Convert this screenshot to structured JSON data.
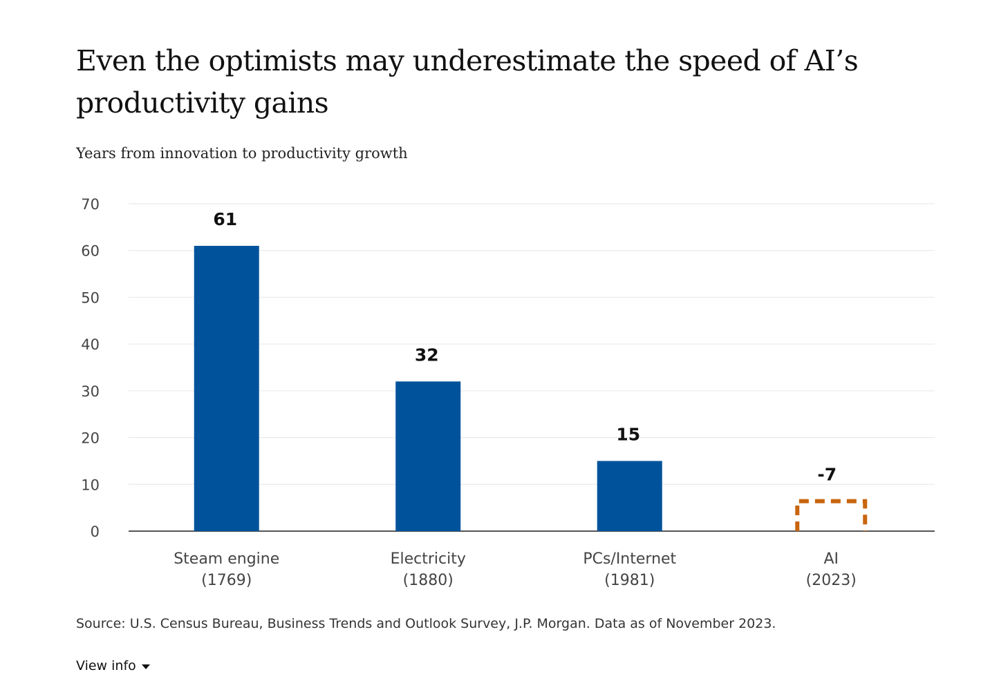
{
  "header": {
    "title": "Even the optimists may underestimate the speed of AI’s productivity gains",
    "subtitle": "Years from innovation to productivity growth"
  },
  "chart_data": {
    "type": "bar",
    "title": "Even the optimists may underestimate the speed of AI’s productivity gains",
    "subtitle": "Years from innovation to productivity growth",
    "xlabel": "",
    "ylabel": "",
    "ylim": [
      0,
      70
    ],
    "yticks": [
      0,
      10,
      20,
      30,
      40,
      50,
      60,
      70
    ],
    "grid": true,
    "categories": [
      {
        "name": "Steam engine",
        "year": "(1769)"
      },
      {
        "name": "Electricity",
        "year": "(1880)"
      },
      {
        "name": "PCs/Internet",
        "year": "(1981)"
      },
      {
        "name": "AI",
        "year": "(2023)"
      }
    ],
    "values": [
      61,
      32,
      15,
      -7
    ],
    "value_labels": [
      "61",
      "32",
      "15",
      "-7"
    ],
    "projected_placeholder_height": 7,
    "colors": {
      "bar": "#00539b",
      "projected_outline": "#c8650f",
      "grid": "#e6e6e6",
      "axis": "#555555"
    }
  },
  "footer": {
    "source": "Source: U.S. Census Bureau, Business Trends and Outlook Survey, J.P. Morgan. Data as of November 2023.",
    "view_info_label": "View info"
  }
}
